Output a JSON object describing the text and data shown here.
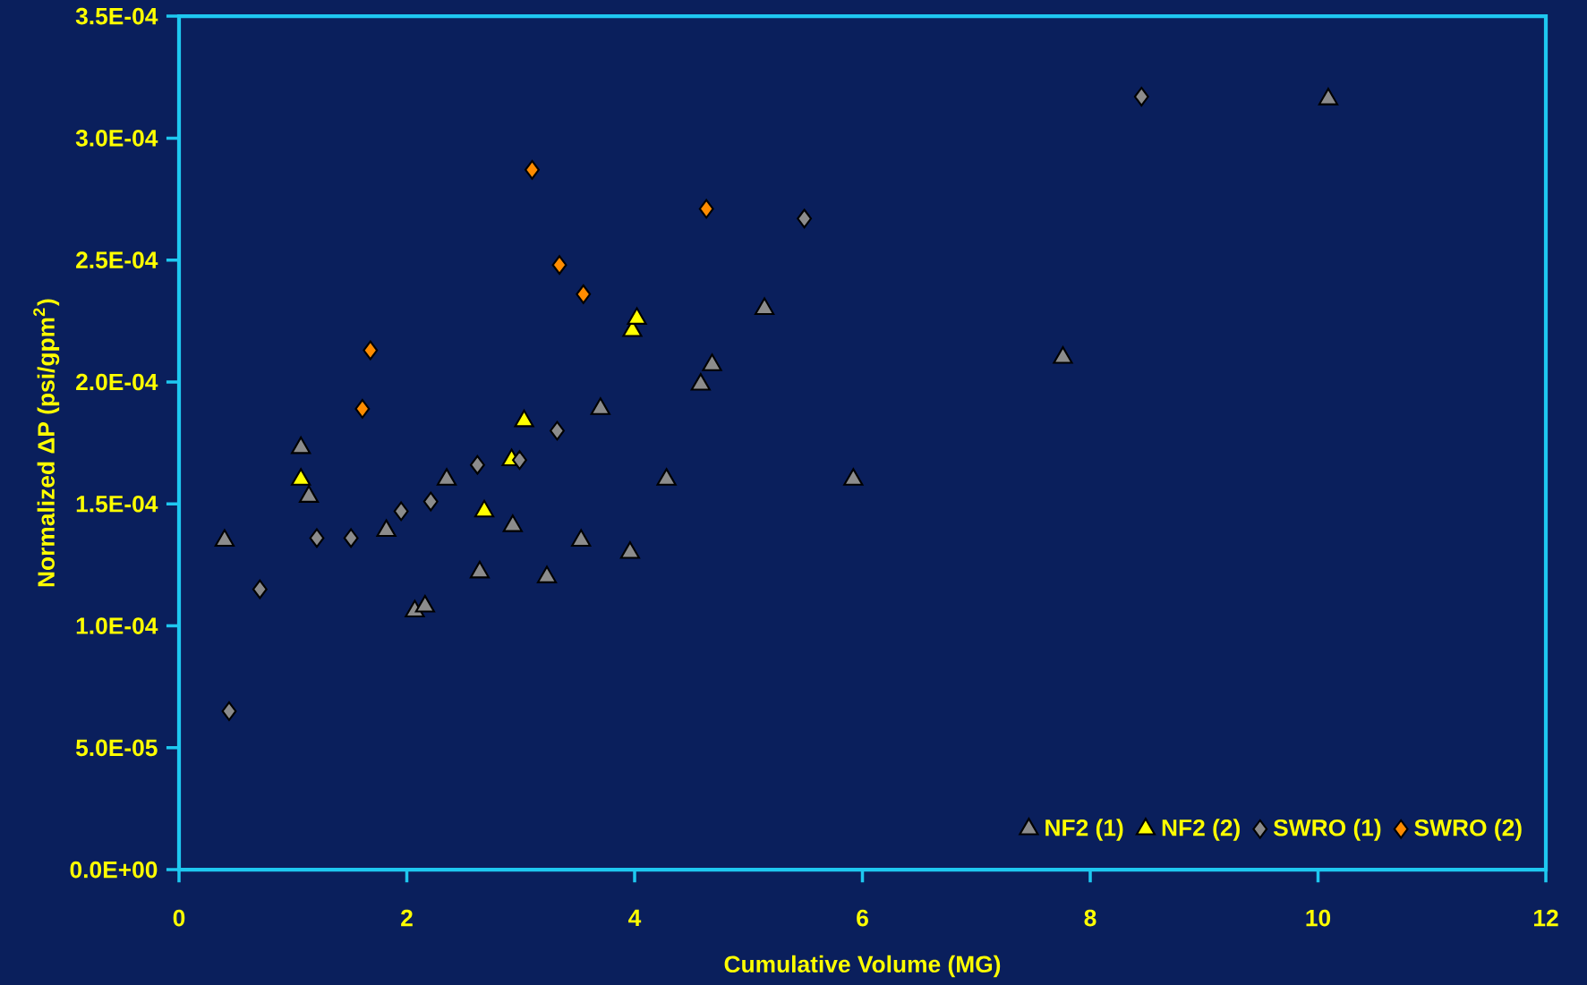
{
  "chart_data": {
    "type": "scatter",
    "xlabel": "Cumulative Volume (MG)",
    "ylabel": "Normalized  ΔP (psi/gpm$^{2}$)",
    "xlim": [
      0,
      12
    ],
    "xticks": [
      0,
      2,
      4,
      6,
      8,
      10,
      12
    ],
    "ylim": [
      0,
      0.00035
    ],
    "yticks": [
      {
        "value": 0,
        "label": "0.0E+00"
      },
      {
        "value": 5e-05,
        "label": "5.0E-05"
      },
      {
        "value": 0.0001,
        "label": "1.0E-04"
      },
      {
        "value": 0.00015,
        "label": "1.5E-04"
      },
      {
        "value": 0.0002,
        "label": "2.0E-04"
      },
      {
        "value": 0.00025,
        "label": "2.5E-04"
      },
      {
        "value": 0.0003,
        "label": "3.0E-04"
      },
      {
        "value": 0.00035,
        "label": "3.5E-04"
      }
    ],
    "grid": false,
    "legend": "bottom right",
    "series": [
      {
        "name": "NF2 (1)",
        "color": "#8c8c8c",
        "marker": "triangle",
        "x": [
          0.4,
          1.07,
          1.14,
          1.82,
          2.07,
          2.16,
          2.35,
          2.64,
          2.93,
          3.23,
          3.53,
          3.7,
          3.96,
          4.28,
          4.58,
          4.68,
          5.14,
          5.92,
          7.76,
          10.09
        ],
        "values": [
          0.000135,
          0.000173,
          0.000153,
          0.000139,
          0.000106,
          0.000108,
          0.00016,
          0.000122,
          0.000141,
          0.00012,
          0.000135,
          0.000189,
          0.00013,
          0.00016,
          0.000199,
          0.000207,
          0.00023,
          0.00016,
          0.00021,
          0.000316
        ]
      },
      {
        "name": "NF2 (2)",
        "color": "#ffff00",
        "marker": "triangle",
        "x": [
          1.07,
          2.68,
          2.92,
          3.03,
          3.98,
          4.02
        ],
        "values": [
          0.00016,
          0.000147,
          0.000168,
          0.000184,
          0.000221,
          0.000226
        ]
      },
      {
        "name": "SWRO (1)",
        "color": "#8c8c8c",
        "marker": "diamond",
        "x": [
          0.44,
          0.71,
          1.21,
          1.51,
          1.95,
          2.21,
          2.62,
          2.99,
          3.32,
          5.49,
          8.45
        ],
        "values": [
          6.5e-05,
          0.000115,
          0.000136,
          0.000136,
          0.000147,
          0.000151,
          0.000166,
          0.000168,
          0.00018,
          0.000267,
          0.000317
        ]
      },
      {
        "name": "SWRO (2)",
        "color": "#ff8c00",
        "marker": "diamond",
        "x": [
          1.61,
          1.68,
          3.1,
          3.34,
          3.55,
          4.63
        ],
        "values": [
          0.000189,
          0.000213,
          0.000287,
          0.000248,
          0.000236,
          0.000271
        ]
      }
    ]
  }
}
